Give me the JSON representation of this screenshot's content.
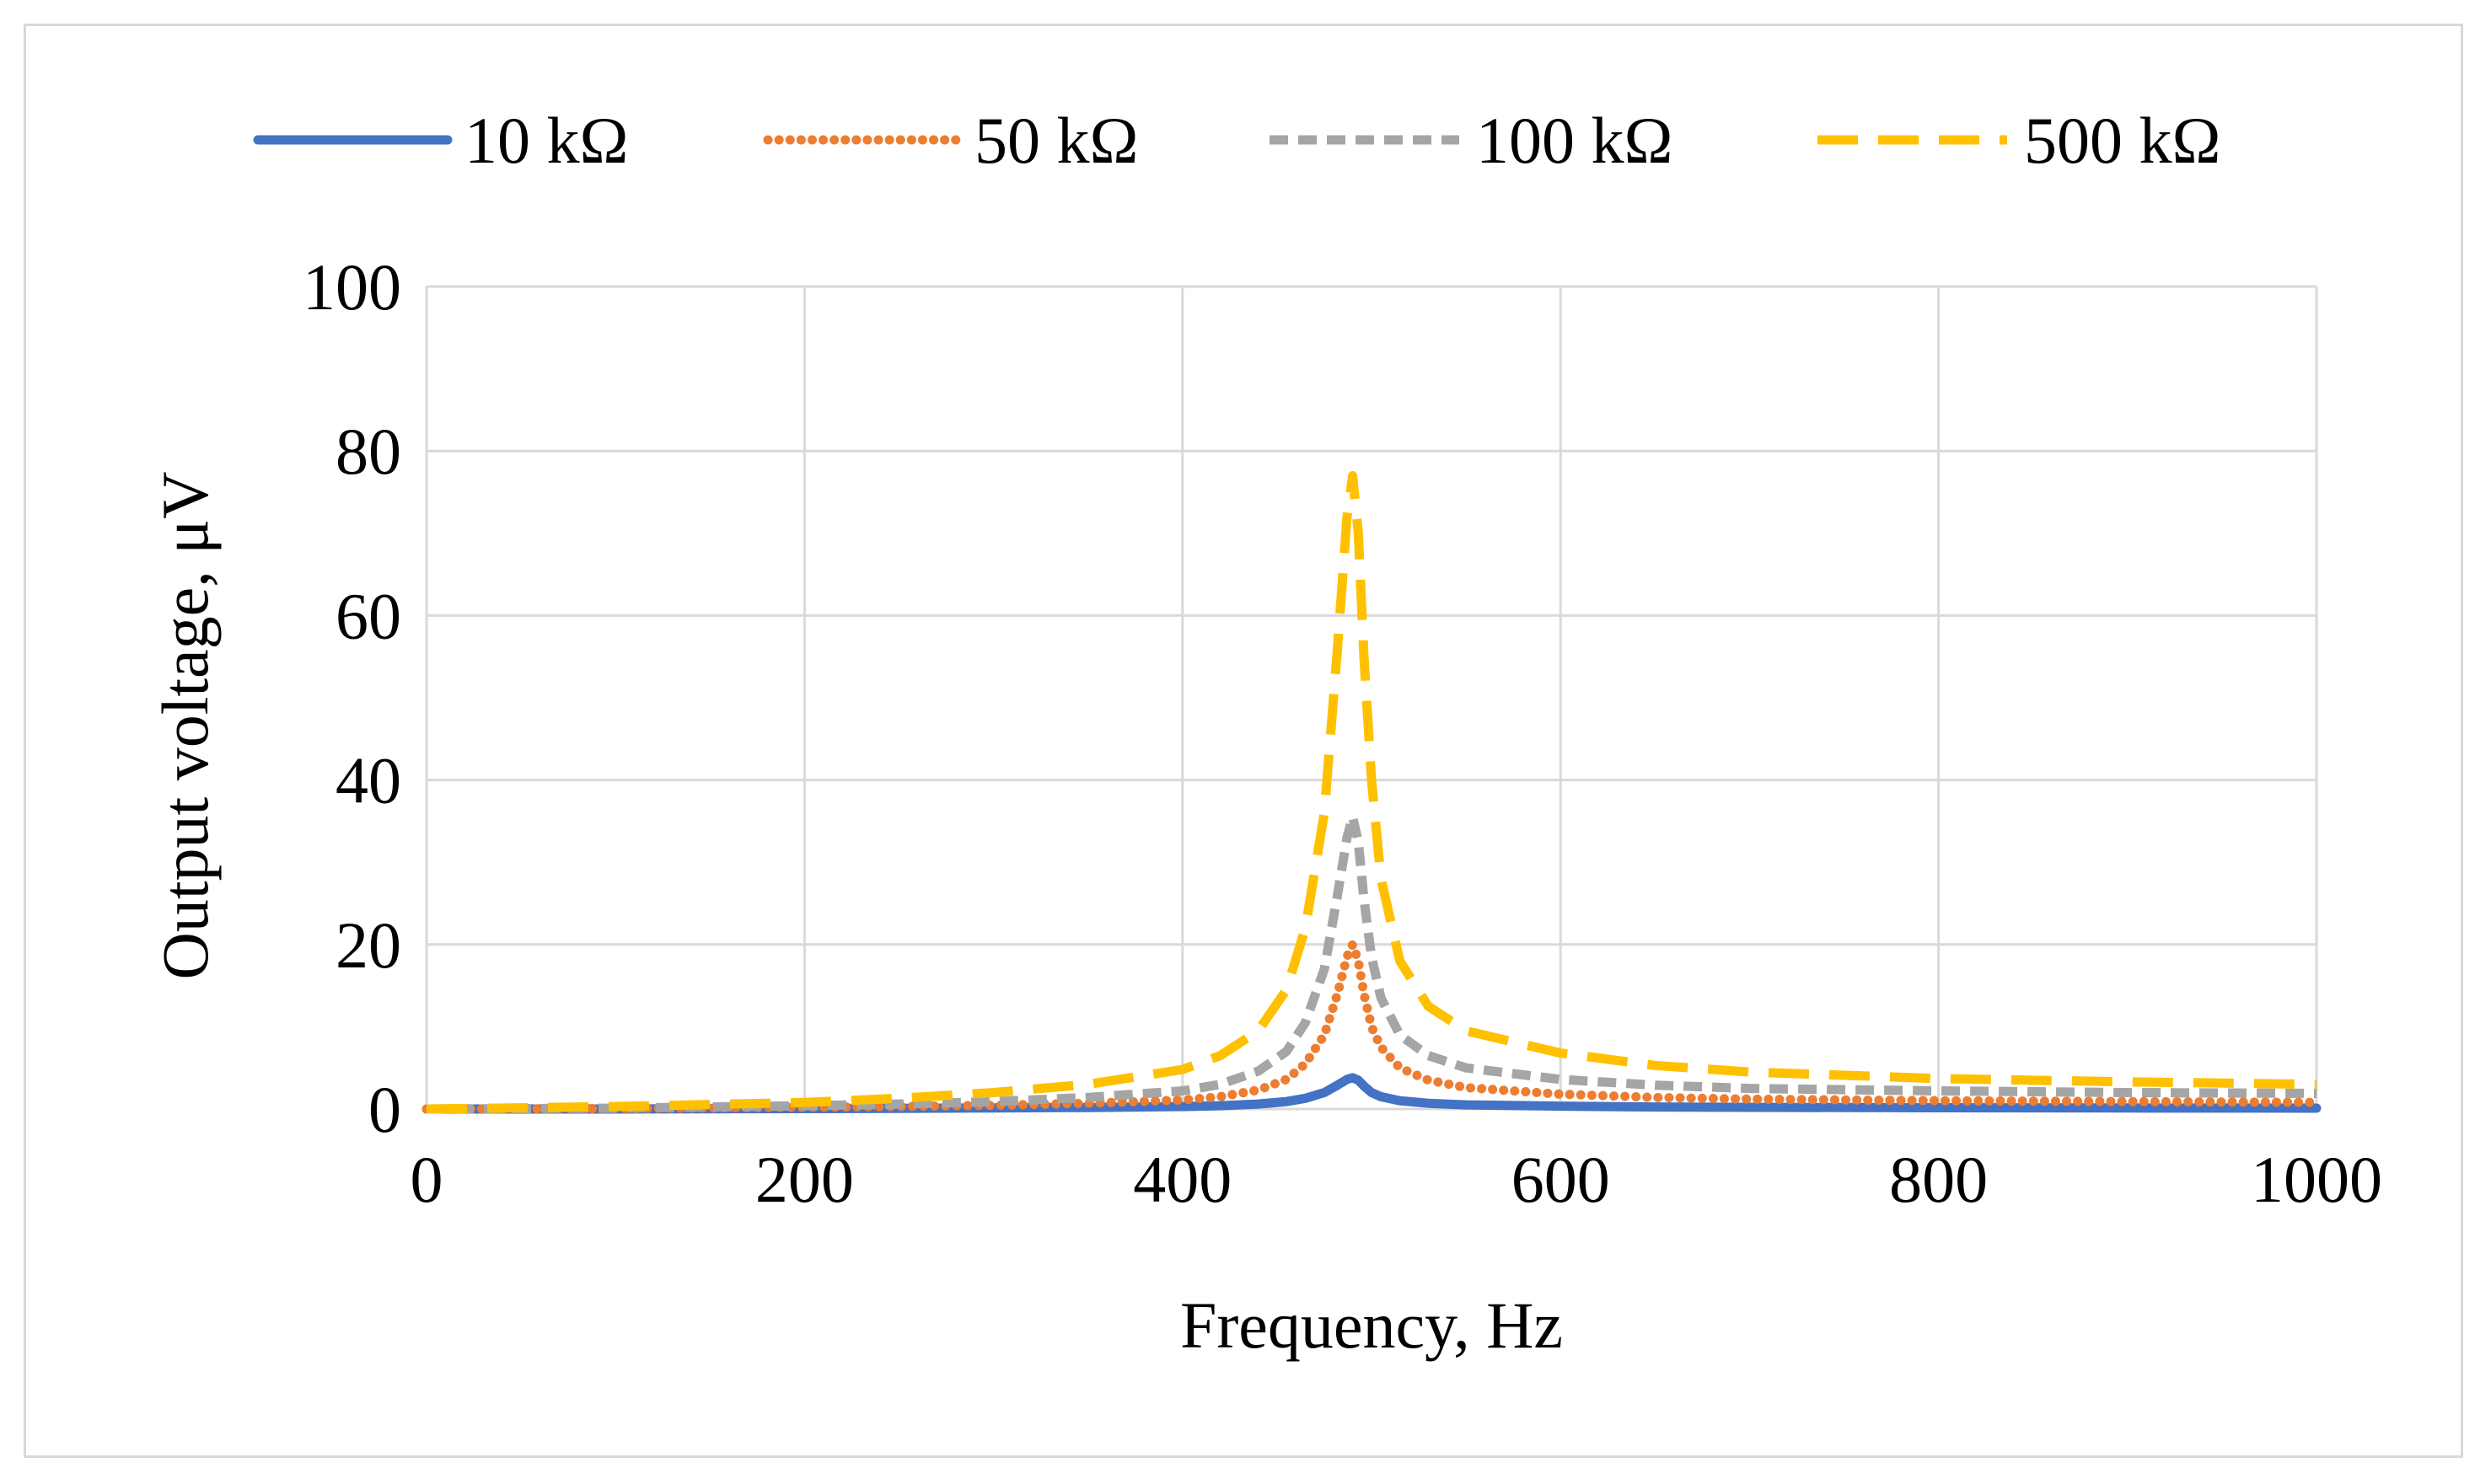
{
  "chart_data": {
    "type": "line",
    "title": "",
    "xlabel": "Frequency, Hz",
    "ylabel": "Output voltage, μV",
    "xlim": [
      0,
      1000
    ],
    "ylim": [
      0,
      100
    ],
    "x_ticks": [
      0,
      200,
      400,
      600,
      800,
      1000
    ],
    "y_ticks": [
      0,
      20,
      40,
      60,
      80,
      100
    ],
    "x_tick_labels": [
      "0",
      "200",
      "400",
      "600",
      "800",
      "1000"
    ],
    "y_tick_labels": [
      "0",
      "20",
      "40",
      "60",
      "80",
      "100"
    ],
    "grid": true,
    "legend_position": "top",
    "x": [
      0,
      100,
      200,
      250,
      300,
      350,
      400,
      420,
      440,
      455,
      465,
      475,
      482,
      487,
      490,
      493,
      496,
      500,
      505,
      515,
      530,
      550,
      600,
      650,
      700,
      800,
      900,
      1000
    ],
    "series": [
      {
        "name": "10 kΩ",
        "color": "#4472c4",
        "style": "solid",
        "values": [
          0,
          0,
          0.05,
          0.08,
          0.12,
          0.18,
          0.3,
          0.4,
          0.6,
          0.9,
          1.3,
          2.0,
          2.9,
          3.6,
          3.8,
          3.5,
          2.8,
          2.0,
          1.5,
          1.0,
          0.7,
          0.5,
          0.35,
          0.25,
          0.2,
          0.15,
          0.12,
          0.1
        ]
      },
      {
        "name": "50 kΩ",
        "color": "#ed7d31",
        "style": "dotted",
        "values": [
          0,
          0.05,
          0.2,
          0.3,
          0.45,
          0.7,
          1.1,
          1.5,
          2.3,
          3.6,
          5.5,
          9.0,
          14.0,
          18.5,
          20.0,
          18.0,
          14.0,
          10.0,
          7.5,
          5.0,
          3.5,
          2.6,
          1.8,
          1.4,
          1.2,
          1.0,
          0.9,
          0.8
        ]
      },
      {
        "name": "100 kΩ",
        "color": "#a5a5a5",
        "style": "dashed",
        "values": [
          0,
          0.1,
          0.4,
          0.6,
          0.9,
          1.4,
          2.2,
          3.0,
          4.6,
          7.0,
          10.5,
          17.0,
          26.0,
          33.0,
          35.5,
          32.5,
          25.5,
          18.5,
          13.5,
          9.0,
          6.5,
          5.0,
          3.6,
          2.9,
          2.5,
          2.2,
          2.0,
          1.9
        ]
      },
      {
        "name": "500 kΩ",
        "color": "#ffc000",
        "style": "long-dashed",
        "values": [
          0,
          0.3,
          0.8,
          1.3,
          2.0,
          3.0,
          4.8,
          6.5,
          9.5,
          14.5,
          22.0,
          36.0,
          56.0,
          72.0,
          77.0,
          70.0,
          55.0,
          40.0,
          28.0,
          18.0,
          12.5,
          9.5,
          6.8,
          5.3,
          4.5,
          3.7,
          3.3,
          3.0
        ]
      }
    ]
  }
}
